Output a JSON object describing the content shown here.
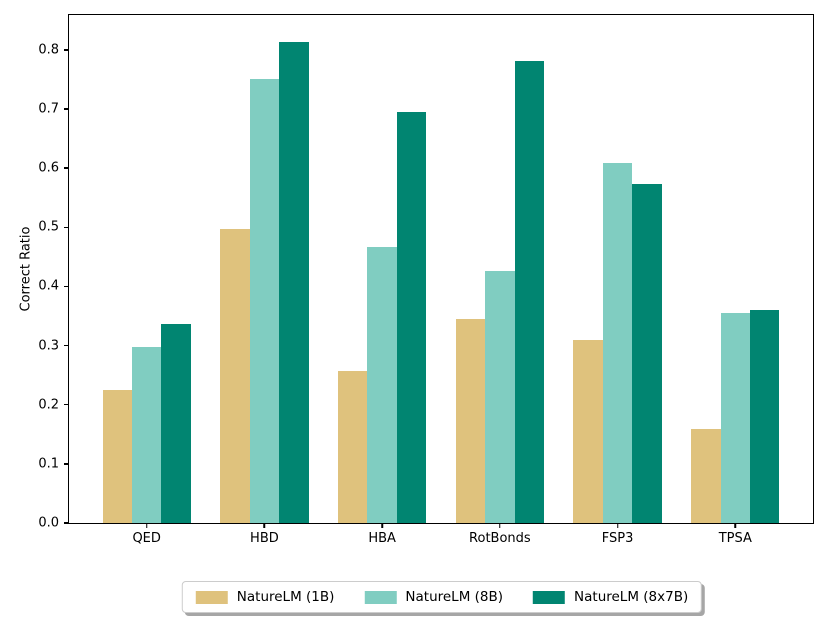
{
  "chart_data": {
    "type": "bar",
    "title": "",
    "xlabel": "",
    "ylabel": "Correct Ratio",
    "categories": [
      "QED",
      "HBD",
      "HBA",
      "RotBonds",
      "FSP3",
      "TPSA"
    ],
    "series": [
      {
        "name": "NatureLM (1B)",
        "color": "#dfc27d",
        "values": [
          0.225,
          0.498,
          0.257,
          0.345,
          0.309,
          0.159
        ]
      },
      {
        "name": "NatureLM (8B)",
        "color": "#80cdc1",
        "values": [
          0.298,
          0.75,
          0.467,
          0.426,
          0.608,
          0.355
        ]
      },
      {
        "name": "NatureLM (8x7B)",
        "color": "#018571",
        "values": [
          0.336,
          0.813,
          0.695,
          0.781,
          0.574,
          0.36
        ]
      }
    ],
    "ylim": [
      0,
      0.859
    ],
    "xlim": [
      -0.66,
      5.66
    ],
    "bar_width": 0.25,
    "y_ticks": [
      0.0,
      0.1,
      0.2,
      0.3,
      0.4,
      0.5,
      0.6,
      0.7,
      0.8
    ],
    "y_tick_labels": [
      "0.0",
      "0.1",
      "0.2",
      "0.3",
      "0.4",
      "0.5",
      "0.6",
      "0.7",
      "0.8"
    ],
    "grid": false,
    "legend_position": "bottom-center",
    "axis_color": "#000000",
    "background_color": "#ffffff"
  }
}
